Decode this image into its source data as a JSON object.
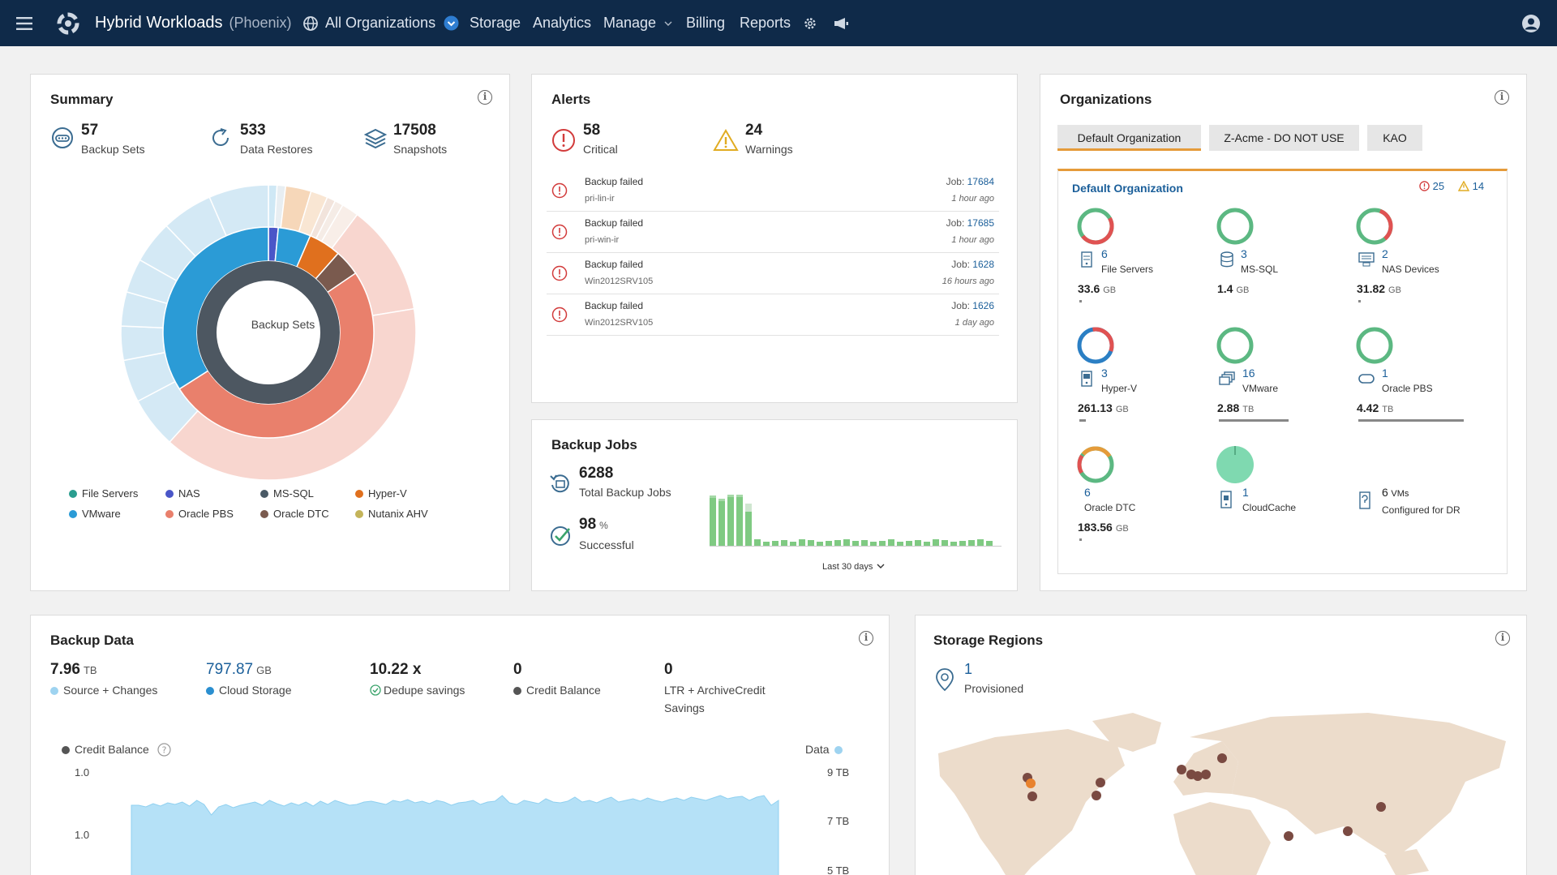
{
  "app": {
    "title": "Hybrid Workloads",
    "subtitle": "(Phoenix)"
  },
  "nav": {
    "org_selector": "All Organizations",
    "items": [
      "Storage",
      "Analytics",
      "Manage",
      "Billing",
      "Reports"
    ]
  },
  "summary": {
    "title": "Summary",
    "stats": [
      {
        "value": "57",
        "label": "Backup Sets"
      },
      {
        "value": "533",
        "label": "Data Restores"
      },
      {
        "value": "17508",
        "label": "Snapshots"
      }
    ],
    "donut_center": "Backup Sets",
    "legend": [
      {
        "label": "File Servers",
        "color": "#2a9d8f"
      },
      {
        "label": "NAS",
        "color": "#4a56c8"
      },
      {
        "label": "MS-SQL",
        "color": "#4a5a66"
      },
      {
        "label": "Hyper-V",
        "color": "#e0701e"
      },
      {
        "label": "VMware",
        "color": "#2b9bd6"
      },
      {
        "label": "Oracle PBS",
        "color": "#e9806c"
      },
      {
        "label": "Oracle DTC",
        "color": "#7a5a4e"
      },
      {
        "label": "Nutanix AHV",
        "color": "#c4b45a"
      }
    ]
  },
  "alerts": {
    "title": "Alerts",
    "critical": {
      "value": "58",
      "label": "Critical"
    },
    "warnings": {
      "value": "24",
      "label": "Warnings"
    },
    "rows": [
      {
        "title": "Backup failed",
        "host": "pri-lin-ir",
        "job_label": "Job:",
        "job": "17684",
        "time": "1 hour ago"
      },
      {
        "title": "Backup failed",
        "host": "pri-win-ir",
        "job_label": "Job:",
        "job": "17685",
        "time": "1 hour ago"
      },
      {
        "title": "Backup failed",
        "host": "Win2012SRV105",
        "job_label": "Job:",
        "job": "1628",
        "time": "16 hours ago"
      },
      {
        "title": "Backup failed",
        "host": "Win2012SRV105",
        "job_label": "Job:",
        "job": "1626",
        "time": "1 day ago"
      }
    ]
  },
  "backup_jobs": {
    "title": "Backup Jobs",
    "total": {
      "value": "6288",
      "label": "Total Backup Jobs"
    },
    "success": {
      "value": "98",
      "unit": "%",
      "label": "Successful"
    },
    "range_label": "Last 30 days"
  },
  "organizations": {
    "title": "Organizations",
    "tabs": [
      "Default Organization",
      "Z-Acme - DO NOT USE",
      "KAO"
    ],
    "card_title": "Default Organization",
    "critical_count": "25",
    "warning_count": "14",
    "items": [
      {
        "count": "6",
        "label": "File Servers",
        "size": "33.6",
        "unit": "GB",
        "icon": "file-server-icon"
      },
      {
        "count": "3",
        "label": "MS-SQL",
        "size": "1.4",
        "unit": "GB",
        "icon": "database-icon"
      },
      {
        "count": "2",
        "label": "NAS Devices",
        "size": "31.82",
        "unit": "GB",
        "icon": "nas-icon"
      },
      {
        "count": "3",
        "label": "Hyper-V",
        "size": "261.13",
        "unit": "GB",
        "icon": "hyperv-icon"
      },
      {
        "count": "16",
        "label": "VMware",
        "size": "2.88",
        "unit": "TB",
        "icon": "vmware-icon"
      },
      {
        "count": "1",
        "label": "Oracle PBS",
        "size": "4.42",
        "unit": "TB",
        "icon": "oracle-icon"
      },
      {
        "count": "6",
        "label": "Oracle DTC",
        "size": "183.56",
        "unit": "GB",
        "icon": "oracle-dtc-icon"
      },
      {
        "count": "1",
        "label": "CloudCache",
        "icon": "cloudcache-icon"
      },
      {
        "count": "6",
        "count_suffix": "VMs",
        "label": "Configured for DR",
        "icon": "dr-icon"
      }
    ]
  },
  "backup_data": {
    "title": "Backup Data",
    "stats": [
      {
        "value": "7.96",
        "unit": "TB",
        "label": "Source + Changes",
        "color": "#9ed3f0"
      },
      {
        "value": "797.87",
        "unit": "GB",
        "label": "Cloud Storage",
        "color": "#2b8fd0"
      },
      {
        "value": "10.22 x",
        "unit": "",
        "label": "Dedupe savings",
        "color": "#3aa36b"
      },
      {
        "value": "0",
        "unit": "",
        "label": "Credit Balance",
        "color": "#555555"
      },
      {
        "value": "0",
        "unit": "",
        "label": "LTR + ArchiveCredit",
        "label2": "Savings"
      }
    ],
    "chart": {
      "legend_left": "Credit Balance",
      "legend_right": "Data",
      "left_ticks": [
        "1.0",
        "1.0"
      ],
      "right_ticks": [
        "9 TB",
        "7 TB",
        "5 TB"
      ]
    }
  },
  "storage_regions": {
    "title": "Storage Regions",
    "value": "1",
    "label": "Provisioned"
  }
}
